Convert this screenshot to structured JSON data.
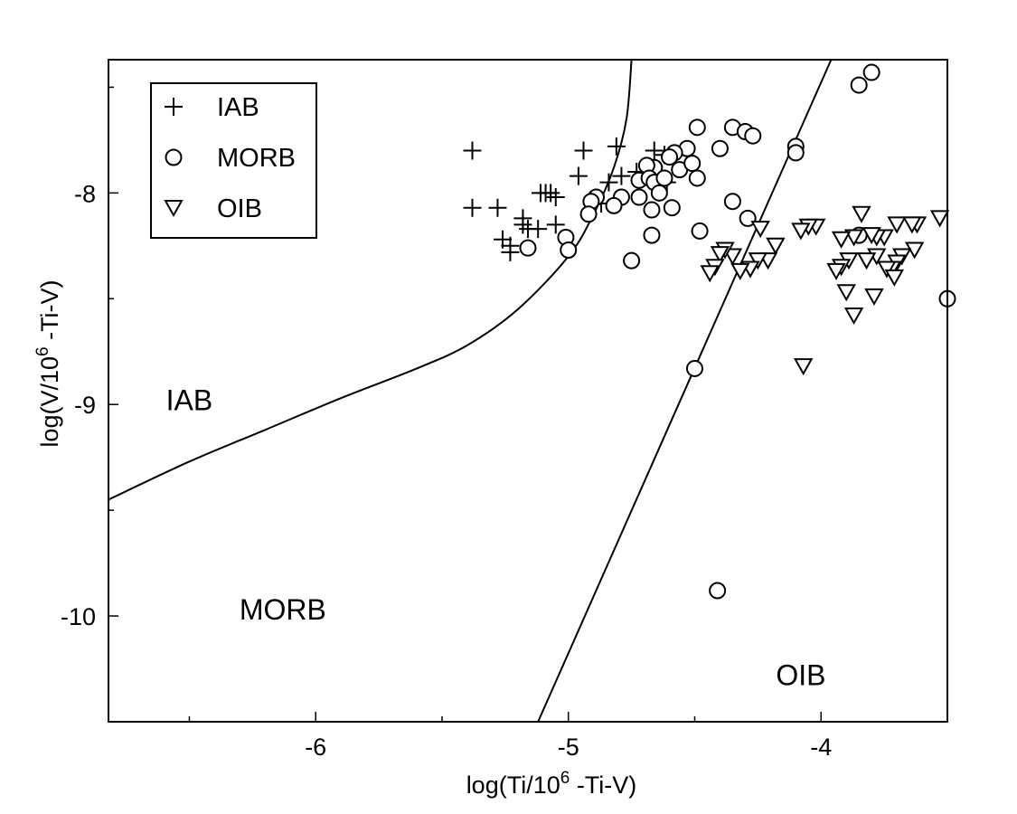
{
  "chart_data": {
    "type": "scatter",
    "title": "",
    "xlabel": {
      "pre": "log(Ti/10",
      "sup": "6",
      "post": " -Ti-V)"
    },
    "ylabel": {
      "pre": "log(V/10",
      "sup": "6",
      "post": " -Ti-V)"
    },
    "xlim": [
      -6.82,
      -3.5
    ],
    "ylim": [
      -10.5,
      -7.37
    ],
    "x_ticks_major": [
      -6,
      -5,
      -4
    ],
    "x_tick_labels": [
      "-6",
      "-5",
      "-4"
    ],
    "x_ticks_minor": [
      -6.5,
      -5.5,
      -4.5,
      -3.5
    ],
    "y_ticks_major": [
      -8,
      -9,
      -10
    ],
    "y_tick_labels": [
      "-8",
      "-9",
      "-10"
    ],
    "y_ticks_minor": [
      -7.5,
      -8.5,
      -9.5,
      -10.5
    ],
    "grid": false,
    "legend_position": "top-left",
    "legend": [
      {
        "marker": "plus",
        "label": "IAB"
      },
      {
        "marker": "circle",
        "label": "MORB"
      },
      {
        "marker": "triangle-down",
        "label": "OIB"
      }
    ],
    "region_labels": [
      {
        "label": "IAB",
        "x": -6.5,
        "y": -8.98
      },
      {
        "label": "MORB",
        "x": -6.13,
        "y": -9.97
      },
      {
        "label": "OIB",
        "x": -4.08,
        "y": -10.28
      }
    ],
    "boundaries": [
      {
        "name": "IAB-MORB",
        "points": [
          [
            -6.82,
            -9.45
          ],
          [
            -6.5,
            -9.27
          ],
          [
            -6.2,
            -9.12
          ],
          [
            -5.9,
            -8.97
          ],
          [
            -5.6,
            -8.83
          ],
          [
            -5.4,
            -8.72
          ],
          [
            -5.2,
            -8.55
          ],
          [
            -5.0,
            -8.3
          ],
          [
            -4.9,
            -8.1
          ],
          [
            -4.82,
            -7.88
          ],
          [
            -4.77,
            -7.65
          ],
          [
            -4.75,
            -7.37
          ]
        ]
      },
      {
        "name": "MORB-OIB",
        "points": [
          [
            -5.12,
            -10.5
          ],
          [
            -3.96,
            -7.37
          ]
        ]
      }
    ],
    "series": [
      {
        "name": "IAB",
        "marker": "plus",
        "points": [
          [
            -5.38,
            -7.8
          ],
          [
            -5.38,
            -8.07
          ],
          [
            -5.28,
            -8.07
          ],
          [
            -5.26,
            -8.22
          ],
          [
            -5.23,
            -8.25
          ],
          [
            -5.23,
            -8.28
          ],
          [
            -5.18,
            -8.12
          ],
          [
            -5.18,
            -8.15
          ],
          [
            -5.16,
            -8.17
          ],
          [
            -5.12,
            -8.17
          ],
          [
            -5.11,
            -8.0
          ],
          [
            -5.09,
            -8.0
          ],
          [
            -5.07,
            -8.0
          ],
          [
            -5.05,
            -8.02
          ],
          [
            -5.05,
            -8.15
          ],
          [
            -4.96,
            -7.92
          ],
          [
            -4.94,
            -7.8
          ],
          [
            -4.87,
            -8.05
          ],
          [
            -4.84,
            -7.95
          ],
          [
            -4.81,
            -7.78
          ],
          [
            -4.79,
            -7.92
          ],
          [
            -4.73,
            -7.9
          ],
          [
            -4.66,
            -7.8
          ],
          [
            -4.62,
            -7.82
          ],
          [
            -4.61,
            -7.95
          ]
        ]
      },
      {
        "name": "MORB",
        "marker": "circle",
        "points": [
          [
            -3.8,
            -7.43
          ],
          [
            -3.85,
            -7.49
          ],
          [
            -4.49,
            -7.69
          ],
          [
            -4.35,
            -7.69
          ],
          [
            -4.3,
            -7.71
          ],
          [
            -4.27,
            -7.73
          ],
          [
            -4.1,
            -7.78
          ],
          [
            -4.1,
            -7.81
          ],
          [
            -4.4,
            -7.79
          ],
          [
            -4.53,
            -7.79
          ],
          [
            -4.58,
            -7.81
          ],
          [
            -4.6,
            -7.83
          ],
          [
            -4.66,
            -7.88
          ],
          [
            -4.69,
            -7.87
          ],
          [
            -4.72,
            -7.94
          ],
          [
            -4.68,
            -7.93
          ],
          [
            -4.66,
            -7.95
          ],
          [
            -4.62,
            -7.93
          ],
          [
            -4.56,
            -7.89
          ],
          [
            -4.51,
            -7.86
          ],
          [
            -4.49,
            -7.93
          ],
          [
            -4.64,
            -8.0
          ],
          [
            -4.72,
            -8.02
          ],
          [
            -4.79,
            -8.02
          ],
          [
            -4.82,
            -8.06
          ],
          [
            -4.89,
            -8.02
          ],
          [
            -4.91,
            -8.04
          ],
          [
            -4.92,
            -8.1
          ],
          [
            -4.67,
            -8.08
          ],
          [
            -4.59,
            -8.07
          ],
          [
            -4.35,
            -8.04
          ],
          [
            -4.29,
            -8.12
          ],
          [
            -4.48,
            -8.18
          ],
          [
            -4.67,
            -8.2
          ],
          [
            -4.75,
            -8.32
          ],
          [
            -5.01,
            -8.21
          ],
          [
            -5.0,
            -8.27
          ],
          [
            -5.16,
            -8.26
          ],
          [
            -3.85,
            -8.2
          ],
          [
            -3.5,
            -8.5
          ],
          [
            -4.5,
            -8.83
          ],
          [
            -4.41,
            -9.88
          ]
        ]
      },
      {
        "name": "OIB",
        "marker": "triangle-down",
        "points": [
          [
            -3.53,
            -8.12
          ],
          [
            -3.62,
            -8.15
          ],
          [
            -3.64,
            -8.15
          ],
          [
            -3.7,
            -8.15
          ],
          [
            -3.75,
            -8.21
          ],
          [
            -3.78,
            -8.21
          ],
          [
            -3.8,
            -8.2
          ],
          [
            -3.84,
            -8.1
          ],
          [
            -3.87,
            -8.21
          ],
          [
            -3.92,
            -8.22
          ],
          [
            -4.02,
            -8.16
          ],
          [
            -4.05,
            -8.16
          ],
          [
            -4.08,
            -8.18
          ],
          [
            -3.63,
            -8.27
          ],
          [
            -3.68,
            -8.3
          ],
          [
            -3.7,
            -8.33
          ],
          [
            -3.72,
            -8.36
          ],
          [
            -3.74,
            -8.36
          ],
          [
            -3.78,
            -8.3
          ],
          [
            -3.82,
            -8.32
          ],
          [
            -3.89,
            -8.32
          ],
          [
            -3.92,
            -8.35
          ],
          [
            -3.94,
            -8.37
          ],
          [
            -3.71,
            -8.4
          ],
          [
            -3.79,
            -8.49
          ],
          [
            -3.9,
            -8.47
          ],
          [
            -3.87,
            -8.58
          ],
          [
            -4.07,
            -8.82
          ],
          [
            -4.18,
            -8.25
          ],
          [
            -4.21,
            -8.32
          ],
          [
            -4.25,
            -8.32
          ],
          [
            -4.28,
            -8.36
          ],
          [
            -4.32,
            -8.37
          ],
          [
            -4.35,
            -8.3
          ],
          [
            -4.38,
            -8.27
          ],
          [
            -4.4,
            -8.29
          ],
          [
            -4.42,
            -8.35
          ],
          [
            -4.44,
            -8.38
          ],
          [
            -4.24,
            -8.17
          ]
        ]
      }
    ]
  }
}
